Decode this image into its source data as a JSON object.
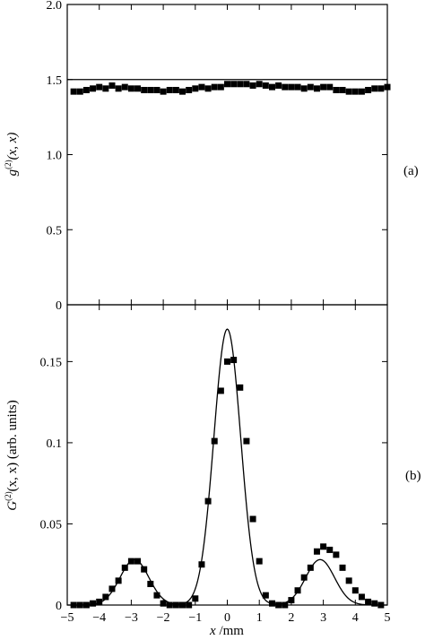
{
  "chart_data": [
    {
      "id": "a",
      "type": "scatter",
      "panel_label": "(a)",
      "ylabel": "g(2)(x, x)",
      "ylabel_parts": {
        "main": "g",
        "sup": "(2)",
        "rest": "(x, x)"
      },
      "xlim": [
        -5,
        5
      ],
      "ylim": [
        0,
        2
      ],
      "yticks": [
        0,
        0.5,
        1,
        1.5,
        2
      ],
      "ytick_labels": [
        "0",
        "0.5",
        "1.0",
        "1.5",
        "2.0"
      ],
      "series": [
        {
          "kind": "points",
          "marker": "square",
          "x": [
            -4.8,
            -4.6,
            -4.4,
            -4.2,
            -4.0,
            -3.8,
            -3.6,
            -3.4,
            -3.2,
            -3.0,
            -2.8,
            -2.6,
            -2.4,
            -2.2,
            -2.0,
            -1.8,
            -1.6,
            -1.4,
            -1.2,
            -1.0,
            -0.8,
            -0.6,
            -0.4,
            -0.2,
            0.0,
            0.2,
            0.4,
            0.6,
            0.8,
            1.0,
            1.2,
            1.4,
            1.6,
            1.8,
            2.0,
            2.2,
            2.4,
            2.6,
            2.8,
            3.0,
            3.2,
            3.4,
            3.6,
            3.8,
            4.0,
            4.2,
            4.4,
            4.6,
            4.8,
            5.0
          ],
          "y": [
            1.42,
            1.42,
            1.43,
            1.44,
            1.45,
            1.44,
            1.46,
            1.44,
            1.45,
            1.44,
            1.44,
            1.43,
            1.43,
            1.43,
            1.42,
            1.43,
            1.43,
            1.42,
            1.43,
            1.44,
            1.45,
            1.44,
            1.45,
            1.45,
            1.47,
            1.47,
            1.47,
            1.47,
            1.46,
            1.47,
            1.46,
            1.45,
            1.46,
            1.45,
            1.45,
            1.45,
            1.44,
            1.45,
            1.44,
            1.45,
            1.45,
            1.43,
            1.43,
            1.42,
            1.42,
            1.42,
            1.43,
            1.44,
            1.44,
            1.45
          ]
        },
        {
          "kind": "line",
          "x": [
            -5,
            5
          ],
          "y": [
            1.5,
            1.5
          ]
        }
      ]
    },
    {
      "id": "b",
      "type": "scatter",
      "panel_label": "(b)",
      "ylabel": "G(2)(x, x)  (arb. units)",
      "ylabel_parts": {
        "main": "G",
        "sup": "(2)",
        "rest": "(x, x)  (arb. units)"
      },
      "xlabel": "x /mm",
      "xlabel_parts": {
        "var": "x",
        "unit": " /mm"
      },
      "xlim": [
        -5,
        5
      ],
      "ylim": [
        0,
        0.185
      ],
      "xticks": [
        -5,
        -4,
        -3,
        -2,
        -1,
        0,
        1,
        2,
        3,
        4,
        5
      ],
      "xtick_labels": [
        "−5",
        "−4",
        "−3",
        "−2",
        "−1",
        "0",
        "1",
        "2",
        "3",
        "4",
        "5"
      ],
      "yticks": [
        0,
        0.05,
        0.1,
        0.15
      ],
      "ytick_labels": [
        "0",
        "0.05",
        "0.1",
        "0.15"
      ],
      "series": [
        {
          "kind": "points",
          "marker": "square",
          "x": [
            -4.8,
            -4.6,
            -4.4,
            -4.2,
            -4.0,
            -3.8,
            -3.6,
            -3.4,
            -3.2,
            -3.0,
            -2.8,
            -2.6,
            -2.4,
            -2.2,
            -2.0,
            -1.8,
            -1.6,
            -1.4,
            -1.2,
            -1.0,
            -0.8,
            -0.6,
            -0.4,
            -0.2,
            0.0,
            0.2,
            0.4,
            0.6,
            0.8,
            1.0,
            1.2,
            1.4,
            1.6,
            1.8,
            2.0,
            2.2,
            2.4,
            2.6,
            2.8,
            3.0,
            3.2,
            3.4,
            3.6,
            3.8,
            4.0,
            4.2,
            4.4,
            4.6,
            4.8
          ],
          "y": [
            0.0,
            0.0,
            0.0,
            0.001,
            0.002,
            0.005,
            0.01,
            0.015,
            0.023,
            0.027,
            0.027,
            0.022,
            0.013,
            0.006,
            0.001,
            0.0,
            0.0,
            0.0,
            0.0,
            0.004,
            0.025,
            0.064,
            0.101,
            0.132,
            0.15,
            0.151,
            0.134,
            0.101,
            0.053,
            0.027,
            0.006,
            0.001,
            0.0,
            0.0,
            0.003,
            0.009,
            0.017,
            0.023,
            0.033,
            0.036,
            0.034,
            0.031,
            0.023,
            0.015,
            0.009,
            0.005,
            0.002,
            0.001,
            0.0
          ]
        },
        {
          "kind": "line",
          "fit": "sum-of-gaussians",
          "components": [
            {
              "amp": 0.17,
              "center": 0.0,
              "sigma": 0.42
            },
            {
              "amp": 0.028,
              "center": -2.9,
              "sigma": 0.45
            },
            {
              "amp": 0.028,
              "center": 2.9,
              "sigma": 0.45
            }
          ]
        }
      ]
    }
  ]
}
